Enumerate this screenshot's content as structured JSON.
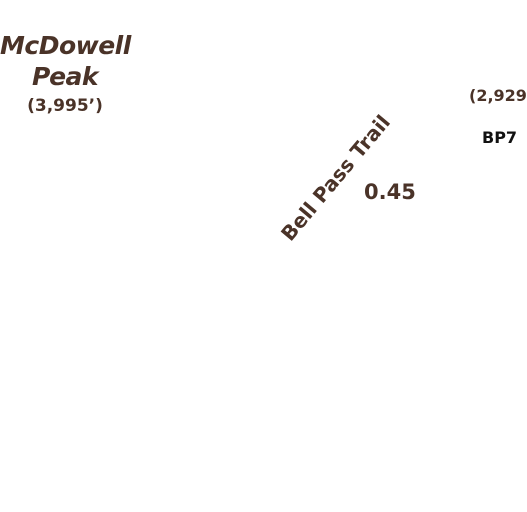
{
  "peaks": [
    {
      "name": "McDowell Peak",
      "elevation": "(3,995’)"
    },
    {
      "elevation": "(2,929"
    }
  ],
  "trail": {
    "name": "Bell Pass Trail",
    "distance": "0.45"
  },
  "marker": {
    "label": "BP7"
  },
  "colors": {
    "label_brown": "#4a3328",
    "marker_black": "#111111",
    "background": "#ffffff"
  }
}
